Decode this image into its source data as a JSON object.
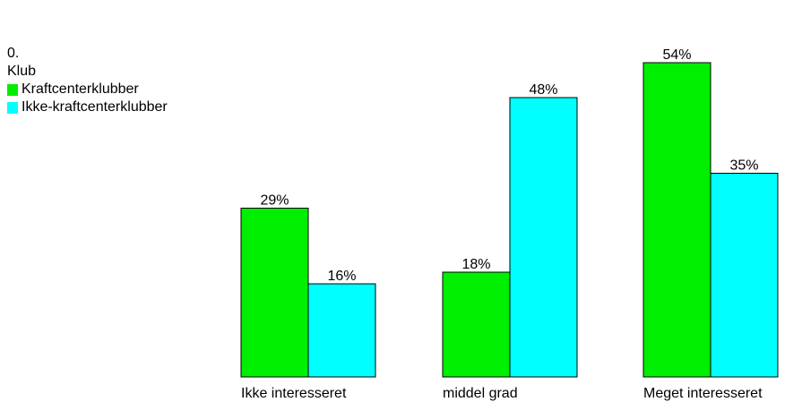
{
  "chart_data": {
    "type": "bar",
    "legend_title_line1": "0.",
    "legend_title_line2": "Klub",
    "categories": [
      "Ikke interesseret",
      "middel grad",
      "Meget interesseret"
    ],
    "series": [
      {
        "name": "Kraftcenterklubber",
        "color": "#00ee00",
        "values": [
          29,
          18,
          54
        ],
        "labels": [
          "29%",
          "18%",
          "54%"
        ]
      },
      {
        "name": "Ikke-kraftcenterklubber",
        "color": "#00ffff",
        "values": [
          16,
          48,
          35
        ],
        "labels": [
          "16%",
          "48%",
          "35%"
        ]
      }
    ],
    "legend_position": "top-left",
    "grid": false
  }
}
